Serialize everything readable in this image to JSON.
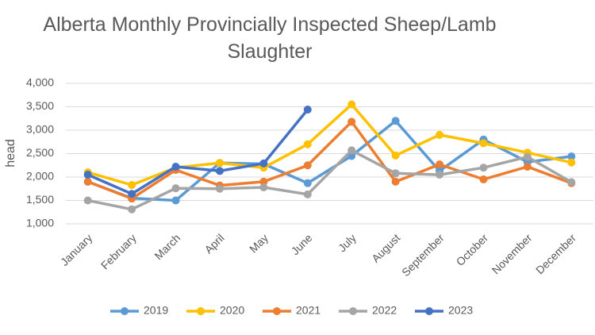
{
  "chart_data": {
    "type": "line",
    "title": "Alberta Monthly Provincially Inspected Sheep/Lamb Slaughter",
    "y_label": "head",
    "categories": [
      "January",
      "February",
      "March",
      "April",
      "May",
      "June",
      "July",
      "August",
      "September",
      "October",
      "November",
      "December"
    ],
    "series": [
      {
        "name": "2019",
        "color": "#5B9BD5",
        "values": [
          1900,
          1550,
          1500,
          2300,
          2280,
          1870,
          2450,
          3200,
          2130,
          2800,
          2320,
          2440
        ]
      },
      {
        "name": "2020",
        "color": "#FFC000",
        "values": [
          2100,
          1830,
          2200,
          2300,
          2200,
          2700,
          3550,
          2460,
          2900,
          2720,
          2520,
          2310
        ]
      },
      {
        "name": "2021",
        "color": "#ED7D31",
        "values": [
          1900,
          1540,
          2150,
          1820,
          1900,
          2250,
          3180,
          1900,
          2270,
          1950,
          2220,
          1870
        ]
      },
      {
        "name": "2022",
        "color": "#A5A5A5",
        "values": [
          1500,
          1310,
          1760,
          1750,
          1780,
          1630,
          2570,
          2080,
          2050,
          2200,
          2430,
          1890
        ]
      },
      {
        "name": "2023",
        "color": "#4472C4",
        "values": [
          2050,
          1640,
          2220,
          2130,
          2290,
          3440,
          null,
          null,
          null,
          null,
          null,
          null
        ]
      }
    ],
    "ylim": [
      1000,
      4000
    ],
    "yticks": [
      {
        "value": 1000,
        "label": "1,000"
      },
      {
        "value": 1500,
        "label": "1,500"
      },
      {
        "value": 2000,
        "label": "2,000"
      },
      {
        "value": 2500,
        "label": "2,500"
      },
      {
        "value": 3000,
        "label": "3,000"
      },
      {
        "value": 3500,
        "label": "3,500"
      },
      {
        "value": 4000,
        "label": "4,000"
      }
    ],
    "grid": true,
    "legend": "bottom"
  }
}
